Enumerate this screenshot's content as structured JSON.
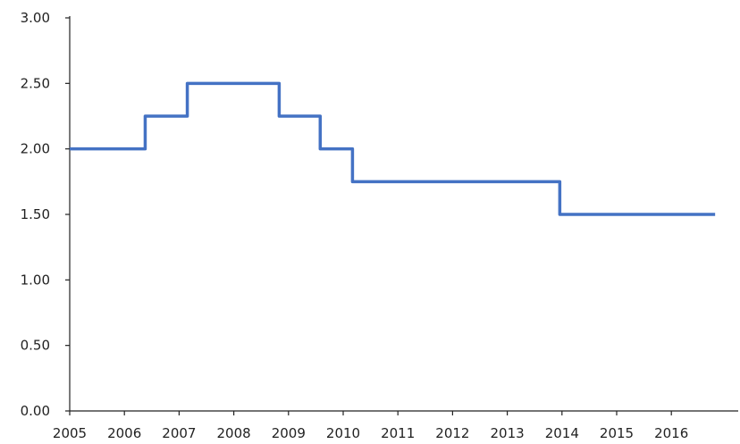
{
  "chart_data": {
    "type": "line",
    "line_style": "step",
    "title": "",
    "xlabel": "",
    "ylabel": "",
    "x_ticks": [
      "2005",
      "2006",
      "2007",
      "2008",
      "2009",
      "2010",
      "2011",
      "2012",
      "2013",
      "2014",
      "2015",
      "2016"
    ],
    "y_ticks": [
      "0.00",
      "0.50",
      "1.00",
      "1.50",
      "2.00",
      "2.50",
      "3.00"
    ],
    "xlim": [
      2005,
      2016.8
    ],
    "ylim": [
      0,
      3
    ],
    "grid": false,
    "legend": "none",
    "series": [
      {
        "color": "#4472C4",
        "x": [
          2005,
          2006.38,
          2007.15,
          2008.83,
          2009.58,
          2010.17,
          2013.96,
          2016.8
        ],
        "y": [
          2.0,
          2.25,
          2.5,
          2.25,
          2.0,
          1.75,
          1.5,
          1.5
        ]
      }
    ]
  }
}
